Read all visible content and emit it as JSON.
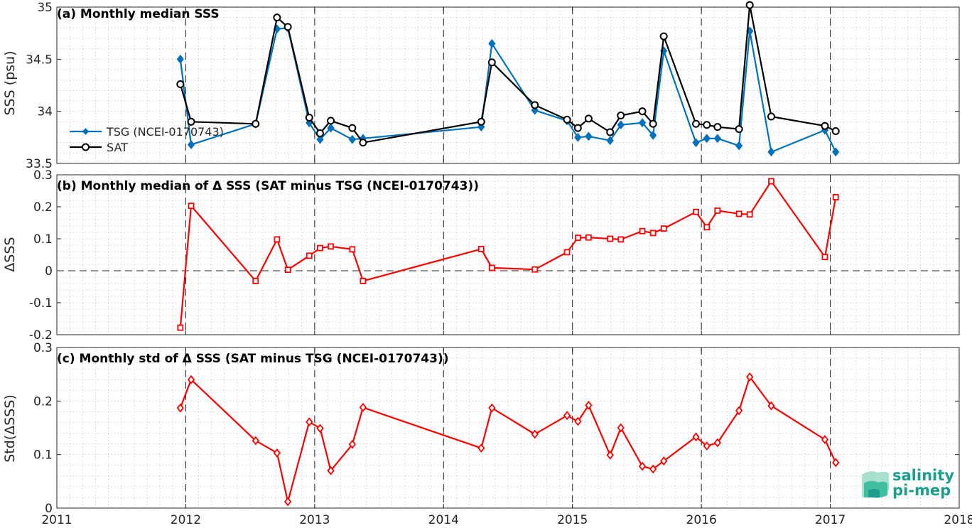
{
  "chart_data": [
    {
      "type": "line",
      "title": "(a) Monthly median SSS",
      "xlabel": "",
      "ylabel": "SSS (psu)",
      "xlim": [
        2011,
        2018
      ],
      "ylim": [
        33.5,
        35
      ],
      "yticks": [
        "33.5",
        "34",
        "34.5",
        "35"
      ],
      "grid": true,
      "legend_position": "middle-left",
      "series": [
        {
          "name": "TSG (NCEI-0170743)",
          "color": "#0072bd",
          "marker": "diamond",
          "x": [
            2011.958,
            2012.042,
            2012.542,
            2012.708,
            2012.792,
            2012.958,
            2013.042,
            2013.125,
            2013.292,
            2013.375,
            2014.292,
            2014.375,
            2014.708,
            2014.958,
            2015.042,
            2015.125,
            2015.292,
            2015.375,
            2015.542,
            2015.625,
            2015.708,
            2015.958,
            2016.042,
            2016.125,
            2016.292,
            2016.375,
            2016.542,
            2016.958,
            2017.042
          ],
          "y": [
            34.5,
            33.68,
            33.88,
            34.79,
            34.8,
            33.89,
            33.73,
            33.84,
            33.73,
            33.74,
            33.85,
            34.65,
            34.01,
            33.91,
            33.75,
            33.76,
            33.72,
            33.87,
            33.89,
            33.77,
            34.58,
            33.7,
            33.74,
            33.74,
            33.67,
            34.77,
            33.61,
            33.82,
            33.61
          ]
        },
        {
          "name": "SAT",
          "color": "#000000",
          "marker": "circle",
          "x": [
            2011.958,
            2012.042,
            2012.542,
            2012.708,
            2012.792,
            2012.958,
            2013.042,
            2013.125,
            2013.292,
            2013.375,
            2014.292,
            2014.375,
            2014.708,
            2014.958,
            2015.042,
            2015.125,
            2015.292,
            2015.375,
            2015.542,
            2015.625,
            2015.708,
            2015.958,
            2016.042,
            2016.125,
            2016.292,
            2016.375,
            2016.542,
            2016.958,
            2017.042
          ],
          "y": [
            34.26,
            33.9,
            33.88,
            34.9,
            34.81,
            33.94,
            33.79,
            33.91,
            33.84,
            33.7,
            33.9,
            34.47,
            34.06,
            33.92,
            33.84,
            33.93,
            33.8,
            33.96,
            34.0,
            33.88,
            34.72,
            33.88,
            33.87,
            33.85,
            33.83,
            35.02,
            33.95,
            33.86,
            33.81
          ]
        }
      ]
    },
    {
      "type": "line",
      "title": "(b) Monthly median of Δ SSS (SAT minus TSG (NCEI-0170743))",
      "xlabel": "",
      "ylabel": "ΔSSS",
      "xlim": [
        2011,
        2018
      ],
      "ylim": [
        -0.2,
        0.3
      ],
      "yticks": [
        "-0.2",
        "-0.1",
        "0",
        "0.1",
        "0.2",
        "0.3"
      ],
      "grid": true,
      "zero_line": true,
      "series": [
        {
          "color": "#ff0000",
          "marker": "square",
          "x": [
            2011.958,
            2012.042,
            2012.542,
            2012.708,
            2012.792,
            2012.958,
            2013.042,
            2013.125,
            2013.292,
            2013.375,
            2014.292,
            2014.375,
            2014.708,
            2014.958,
            2015.042,
            2015.125,
            2015.292,
            2015.375,
            2015.542,
            2015.625,
            2015.708,
            2015.958,
            2016.042,
            2016.125,
            2016.292,
            2016.375,
            2016.542,
            2016.958,
            2017.042
          ],
          "y": [
            -0.178,
            0.203,
            -0.032,
            0.098,
            0.003,
            0.047,
            0.071,
            0.076,
            0.067,
            -0.032,
            0.068,
            0.009,
            0.004,
            0.058,
            0.103,
            0.104,
            0.1,
            0.098,
            0.124,
            0.118,
            0.132,
            0.184,
            0.136,
            0.188,
            0.178,
            0.176,
            0.28,
            0.043,
            0.23
          ]
        }
      ]
    },
    {
      "type": "line",
      "title": "(c) Monthly std of Δ SSS (SAT minus TSG (NCEI-0170743))",
      "xlabel": "",
      "ylabel": "Std(ΔSSS)",
      "xlim": [
        2011,
        2018
      ],
      "ylim": [
        0,
        0.3
      ],
      "yticks": [
        "0",
        "0.1",
        "0.2",
        "0.3"
      ],
      "xticks": [
        "2011",
        "2012",
        "2013",
        "2014",
        "2015",
        "2016",
        "2017",
        "2018"
      ],
      "grid": true,
      "series": [
        {
          "color": "#ff0000",
          "marker": "diamond",
          "x": [
            2011.958,
            2012.042,
            2012.542,
            2012.708,
            2012.792,
            2012.958,
            2013.042,
            2013.125,
            2013.292,
            2013.375,
            2014.292,
            2014.375,
            2014.708,
            2014.958,
            2015.042,
            2015.125,
            2015.292,
            2015.375,
            2015.542,
            2015.625,
            2015.708,
            2015.958,
            2016.042,
            2016.125,
            2016.292,
            2016.375,
            2016.542,
            2016.958,
            2017.042
          ],
          "y": [
            0.187,
            0.24,
            0.126,
            0.103,
            0.012,
            0.161,
            0.149,
            0.07,
            0.119,
            0.188,
            0.112,
            0.187,
            0.138,
            0.173,
            0.162,
            0.192,
            0.099,
            0.15,
            0.078,
            0.073,
            0.088,
            0.133,
            0.116,
            0.122,
            0.182,
            0.245,
            0.191,
            0.128,
            0.085
          ]
        }
      ]
    }
  ],
  "logo": {
    "line1": "salinity",
    "line2": "pi-mep",
    "color": "#1b9e8f"
  }
}
